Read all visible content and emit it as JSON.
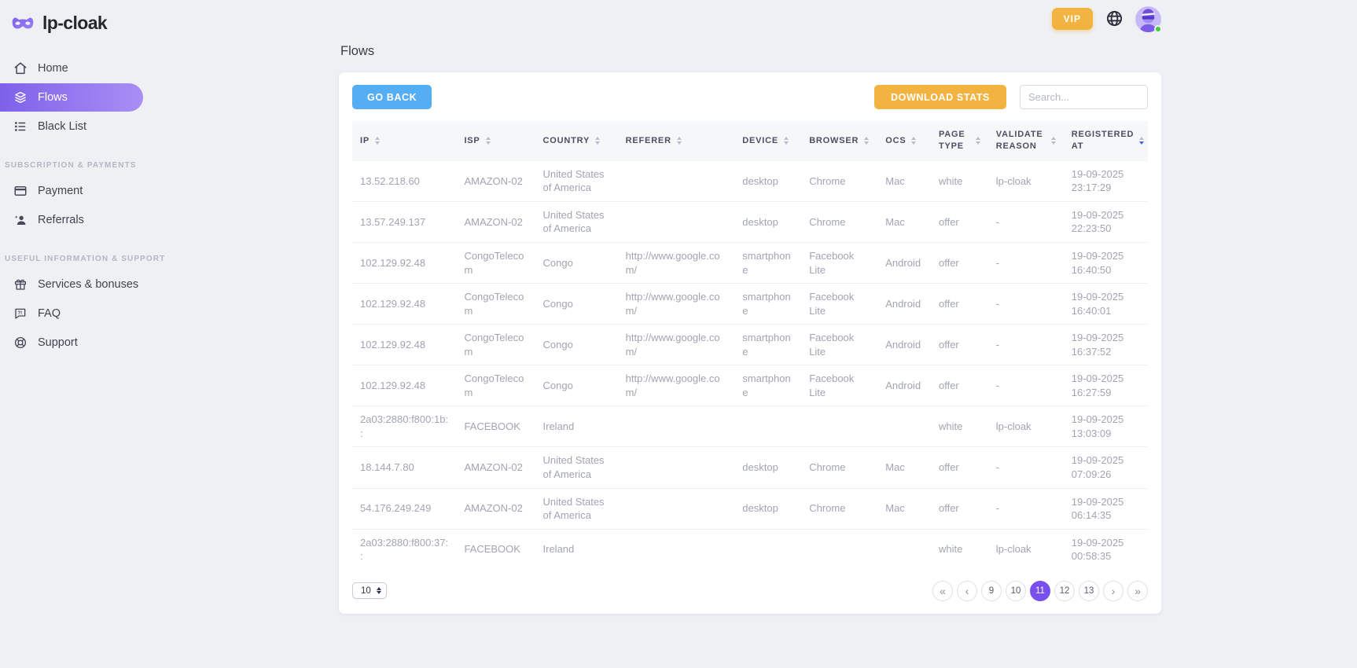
{
  "brand": {
    "name": "lp-cloak"
  },
  "topbar": {
    "vip_label": "VIP"
  },
  "colors": {
    "accent_purple": "#7a4ff0",
    "sidebar_active_gradient": [
      "#7e61ea",
      "#a88ff5"
    ],
    "amber": "#f2b340",
    "blue": "#55aef3",
    "sort_active_blue": "#4161e0",
    "online_green": "#3ecb3e"
  },
  "icons": {
    "logo": "mask-icon",
    "topbar": [
      "globe-icon",
      "avatar"
    ],
    "nav": [
      "home-icon",
      "flows-stack-icon",
      "list-icon",
      "credit-card-icon",
      "person-add-icon",
      "gift-icon",
      "chat-question-icon",
      "lifebuoy-icon"
    ]
  },
  "sidebar": {
    "items": [
      {
        "label": "Home",
        "active": false
      },
      {
        "label": "Flows",
        "active": true
      },
      {
        "label": "Black List",
        "active": false
      }
    ],
    "sections": [
      {
        "label": "SUBSCRIPTION & PAYMENTS",
        "items": [
          {
            "label": "Payment"
          },
          {
            "label": "Referrals"
          }
        ]
      },
      {
        "label": "USEFUL INFORMATION & SUPPORT",
        "items": [
          {
            "label": "Services & bonuses"
          },
          {
            "label": "FAQ"
          },
          {
            "label": "Support"
          }
        ]
      }
    ]
  },
  "page": {
    "title": "Flows"
  },
  "toolbar": {
    "go_back_label": "GO BACK",
    "download_stats_label": "DOWNLOAD STATS",
    "search_placeholder": "Search..."
  },
  "table": {
    "columns": [
      {
        "key": "ip",
        "label": "IP"
      },
      {
        "key": "isp",
        "label": "ISP"
      },
      {
        "key": "country",
        "label": "COUNTRY"
      },
      {
        "key": "referer",
        "label": "REFERER"
      },
      {
        "key": "device",
        "label": "DEVICE"
      },
      {
        "key": "browser",
        "label": "BROWSER"
      },
      {
        "key": "ocs",
        "label": "OCS"
      },
      {
        "key": "page_type",
        "label": "PAGE TYPE"
      },
      {
        "key": "validate_reason",
        "label": "VALIDATE REASON"
      },
      {
        "key": "registered_at",
        "label": "REGISTERED AT"
      }
    ],
    "sort": {
      "column": "registered_at",
      "direction": "desc"
    },
    "rows": [
      {
        "ip": "13.52.218.60",
        "isp": "AMAZON-02",
        "country": "United States of America",
        "referer": "",
        "device": "desktop",
        "browser": "Chrome",
        "ocs": "Mac",
        "page_type": "white",
        "validate_reason": "lp-cloak",
        "registered_at": "19-09-2025 23:17:29"
      },
      {
        "ip": "13.57.249.137",
        "isp": "AMAZON-02",
        "country": "United States of America",
        "referer": "",
        "device": "desktop",
        "browser": "Chrome",
        "ocs": "Mac",
        "page_type": "offer",
        "validate_reason": "-",
        "registered_at": "19-09-2025 22:23:50"
      },
      {
        "ip": "102.129.92.48",
        "isp": "CongoTelecom",
        "country": "Congo",
        "referer": "http://www.google.com/",
        "device": "smartphone",
        "browser": "Facebook Lite",
        "ocs": "Android",
        "page_type": "offer",
        "validate_reason": "-",
        "registered_at": "19-09-2025 16:40:50"
      },
      {
        "ip": "102.129.92.48",
        "isp": "CongoTelecom",
        "country": "Congo",
        "referer": "http://www.google.com/",
        "device": "smartphone",
        "browser": "Facebook Lite",
        "ocs": "Android",
        "page_type": "offer",
        "validate_reason": "-",
        "registered_at": "19-09-2025 16:40:01"
      },
      {
        "ip": "102.129.92.48",
        "isp": "CongoTelecom",
        "country": "Congo",
        "referer": "http://www.google.com/",
        "device": "smartphone",
        "browser": "Facebook Lite",
        "ocs": "Android",
        "page_type": "offer",
        "validate_reason": "-",
        "registered_at": "19-09-2025 16:37:52"
      },
      {
        "ip": "102.129.92.48",
        "isp": "CongoTelecom",
        "country": "Congo",
        "referer": "http://www.google.com/",
        "device": "smartphone",
        "browser": "Facebook Lite",
        "ocs": "Android",
        "page_type": "offer",
        "validate_reason": "-",
        "registered_at": "19-09-2025 16:27:59"
      },
      {
        "ip": "2a03:2880:f800:1b::",
        "isp": "FACEBOOK",
        "country": "Ireland",
        "referer": "",
        "device": "",
        "browser": "",
        "ocs": "",
        "page_type": "white",
        "validate_reason": "lp-cloak",
        "registered_at": "19-09-2025 13:03:09"
      },
      {
        "ip": "18.144.7.80",
        "isp": "AMAZON-02",
        "country": "United States of America",
        "referer": "",
        "device": "desktop",
        "browser": "Chrome",
        "ocs": "Mac",
        "page_type": "offer",
        "validate_reason": "-",
        "registered_at": "19-09-2025 07:09:26"
      },
      {
        "ip": "54.176.249.249",
        "isp": "AMAZON-02",
        "country": "United States of America",
        "referer": "",
        "device": "desktop",
        "browser": "Chrome",
        "ocs": "Mac",
        "page_type": "offer",
        "validate_reason": "-",
        "registered_at": "19-09-2025 06:14:35"
      },
      {
        "ip": "2a03:2880:f800:37::",
        "isp": "FACEBOOK",
        "country": "Ireland",
        "referer": "",
        "device": "",
        "browser": "",
        "ocs": "",
        "page_type": "white",
        "validate_reason": "lp-cloak",
        "registered_at": "19-09-2025 00:58:35"
      }
    ]
  },
  "footer": {
    "page_size": "10",
    "pagination": {
      "first": "«",
      "prev": "‹",
      "pages": [
        "9",
        "10",
        "11",
        "12",
        "13"
      ],
      "active_page": "11",
      "next": "›",
      "last": "»"
    }
  }
}
